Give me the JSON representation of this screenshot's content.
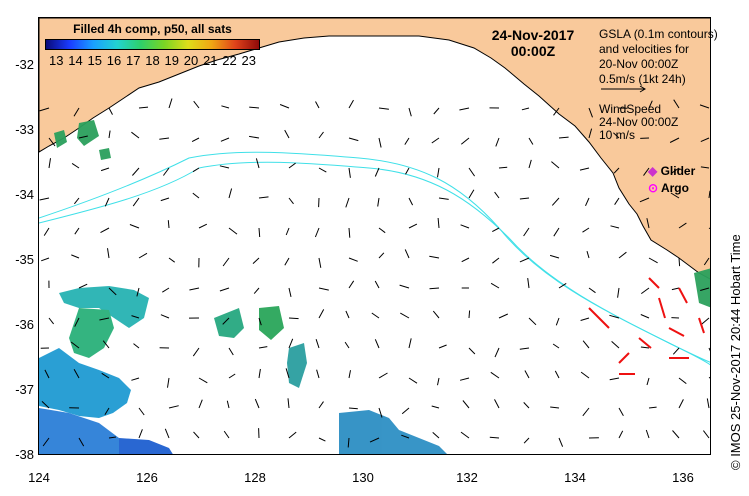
{
  "title": {
    "product": "Filled 4h comp, p50, all sats",
    "date": "24-Nov-2017",
    "time": "00:00Z"
  },
  "colorbar": {
    "ticks": [
      "13",
      "14",
      "15",
      "16",
      "17",
      "18",
      "19",
      "20",
      "21",
      "22",
      "23"
    ]
  },
  "legend": {
    "gsla_line1": "GSLA (0.1m contours)",
    "gsla_line2": "and velocities for",
    "gsla_line3": "20-Nov 00:00Z",
    "scale_label": "0.5m/s (1kt 24h)",
    "wind_title": "WindSpeed",
    "wind_time": "24-Nov 00:00Z",
    "wind_scale": "10 m/s",
    "glider_label": "Glider",
    "argo_label": "Argo"
  },
  "axes": {
    "lon_ticks": [
      "124",
      "126",
      "128",
      "130",
      "132",
      "134",
      "136"
    ],
    "lat_ticks": [
      "-32",
      "-33",
      "-34",
      "-35",
      "-36",
      "-37",
      "-38"
    ]
  },
  "credit": "© IMOS 25-Nov-2017 20:44 Hobart Time",
  "colors": {
    "land": "#f9c99b",
    "contour": "#40e0e8",
    "glider": "#cc33cc",
    "argo": "#ff00ff",
    "wind": "#ee1111"
  }
}
